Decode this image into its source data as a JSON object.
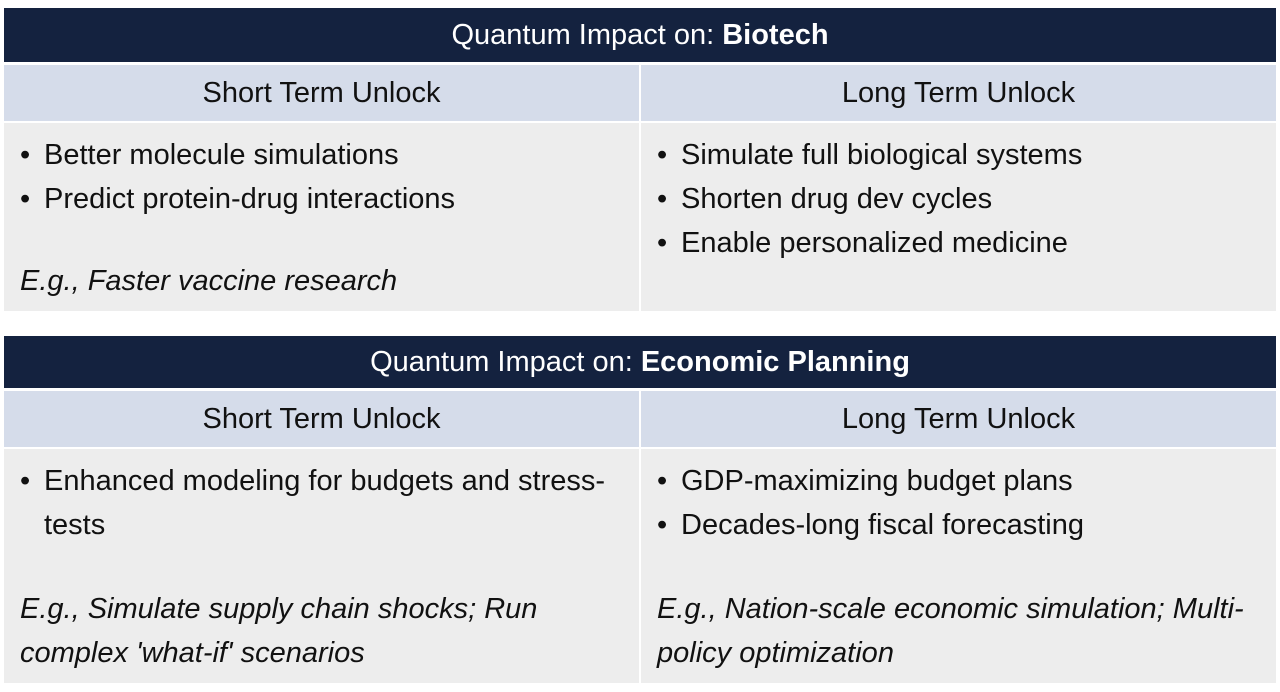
{
  "panels": [
    {
      "title_prefix": "Quantum Impact on:",
      "topic": "Biotech",
      "columns": [
        {
          "heading": "Short Term Unlock",
          "bullets": [
            "Better molecule simulations",
            "Predict protein-drug interactions"
          ],
          "example": "E.g., Faster vaccine research"
        },
        {
          "heading": "Long Term Unlock",
          "bullets": [
            "Simulate full biological systems",
            "Shorten drug dev cycles",
            "Enable personalized medicine"
          ]
        }
      ]
    },
    {
      "title_prefix": "Quantum Impact on:",
      "topic": "Economic Planning",
      "columns": [
        {
          "heading": "Short Term Unlock",
          "bullets": [
            "Enhanced modeling for budgets and stress-tests"
          ],
          "example": "E.g., Simulate supply chain shocks; Run complex 'what-if' scenarios"
        },
        {
          "heading": "Long Term Unlock",
          "bullets": [
            "GDP-maximizing budget plans",
            "Decades-long fiscal forecasting"
          ],
          "example": "E.g., Nation-scale economic simulation; Multi-policy optimization"
        }
      ]
    }
  ]
}
